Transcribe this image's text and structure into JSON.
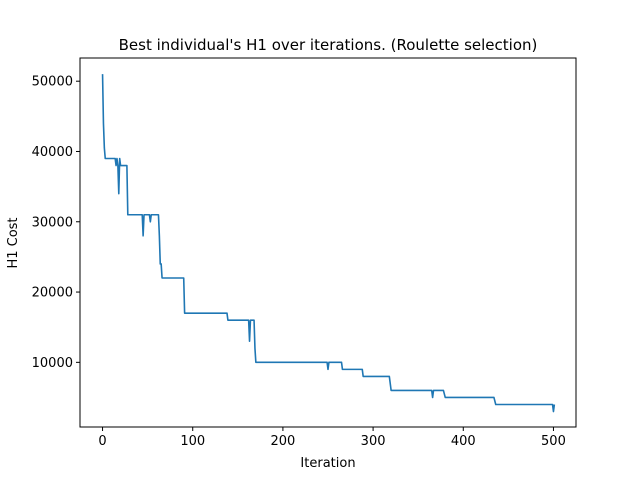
{
  "chart_data": {
    "type": "line",
    "title": "Best individual's H1 over iterations. (Roulette selection)",
    "xlabel": "Iteration",
    "ylabel": "H1 Cost",
    "xlim": [
      -25,
      525
    ],
    "ylim": [
      800,
      53300
    ],
    "xticks": [
      0,
      100,
      200,
      300,
      400,
      500
    ],
    "yticks": [
      10000,
      20000,
      30000,
      40000,
      50000
    ],
    "grid": false,
    "legend": "none",
    "series": [
      {
        "color": "#1f77b4",
        "x": [
          0,
          1,
          2,
          3,
          14,
          15,
          16,
          17,
          18,
          19,
          20,
          21,
          27,
          28,
          44,
          45,
          46,
          52,
          53,
          54,
          62,
          63,
          64,
          65,
          66,
          90,
          91,
          138,
          139,
          162,
          163,
          164,
          165,
          168,
          169,
          170,
          171,
          249,
          250,
          251,
          265,
          266,
          288,
          289,
          318,
          320,
          365,
          366,
          367,
          378,
          380,
          434,
          436,
          499,
          500,
          501
        ],
        "y": [
          51000,
          44000,
          40500,
          39000,
          39000,
          38000,
          39000,
          38000,
          34000,
          39000,
          38000,
          38000,
          38000,
          31000,
          31000,
          28000,
          31000,
          31000,
          30000,
          31000,
          31000,
          28000,
          24000,
          24000,
          22000,
          22000,
          17000,
          17000,
          16000,
          16000,
          13000,
          16000,
          16000,
          16000,
          12000,
          10000,
          10000,
          10000,
          9000,
          10000,
          10000,
          9000,
          9000,
          8000,
          8000,
          6000,
          6000,
          5000,
          6000,
          6000,
          5000,
          5000,
          4000,
          4000,
          3000,
          4000
        ]
      }
    ]
  }
}
